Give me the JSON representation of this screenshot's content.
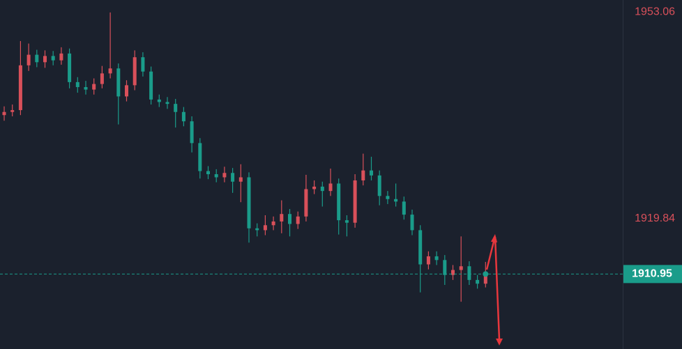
{
  "chart_data": {
    "type": "candlestick",
    "up_color": "#d9505a",
    "down_color": "#1a9c8a",
    "ylim": [
      1898.9,
      1955.0
    ],
    "yticks": [
      1953.06,
      1919.84
    ],
    "last_price": 1910.95,
    "open": [
      1936.5,
      1937.0,
      1937.3,
      1944.5,
      1946.2,
      1945.0,
      1946.0,
      1945.3,
      1946.4,
      1941.8,
      1941.0,
      1940.6,
      1941.5,
      1943.2,
      1944.0,
      1939.5,
      1941.3,
      1945.8,
      1943.5,
      1939.0,
      1938.6,
      1938.3,
      1937.0,
      1935.5,
      1932.0,
      1927.5,
      1927.0,
      1926.5,
      1927.2,
      1925.8,
      1926.5,
      1918.3,
      1918.0,
      1918.8,
      1919.4,
      1920.6,
      1919.0,
      1920.2,
      1924.6,
      1925.0,
      1924.3,
      1925.5,
      1919.6,
      1919.2,
      1926.0,
      1927.6,
      1926.8,
      1923.5,
      1923.0,
      1922.6,
      1920.5,
      1918.0,
      1912.5,
      1913.8,
      1913.2,
      1910.8,
      1911.6,
      1912.2,
      1910.0,
      1909.4
    ],
    "high": [
      1937.9,
      1938.2,
      1948.4,
      1948.0,
      1947.0,
      1946.9,
      1946.8,
      1947.4,
      1947.2,
      1942.6,
      1942.0,
      1942.4,
      1944.4,
      1953.0,
      1944.8,
      1942.1,
      1946.9,
      1946.6,
      1944.3,
      1939.8,
      1939.4,
      1939.1,
      1937.8,
      1936.3,
      1932.8,
      1928.3,
      1927.8,
      1928.2,
      1928.0,
      1928.6,
      1927.3,
      1919.1,
      1920.4,
      1920.2,
      1922.8,
      1921.4,
      1921.0,
      1926.9,
      1926.0,
      1925.8,
      1927.9,
      1926.3,
      1920.4,
      1927.0,
      1930.3,
      1929.8,
      1927.6,
      1924.3,
      1925.5,
      1923.4,
      1921.3,
      1918.8,
      1914.6,
      1914.6,
      1914.0,
      1912.4,
      1917.0,
      1913.0,
      1910.8,
      1912.9
    ],
    "low": [
      1935.6,
      1936.3,
      1936.5,
      1943.6,
      1944.2,
      1944.1,
      1944.5,
      1944.6,
      1940.8,
      1940.1,
      1939.8,
      1939.8,
      1940.8,
      1942.4,
      1935.0,
      1938.7,
      1940.5,
      1942.7,
      1938.2,
      1937.8,
      1937.5,
      1934.5,
      1934.7,
      1930.5,
      1926.3,
      1926.2,
      1925.7,
      1925.7,
      1924.0,
      1922.5,
      1916.0,
      1917.0,
      1917.2,
      1918.0,
      1917.5,
      1917.0,
      1918.2,
      1919.4,
      1923.8,
      1921.8,
      1923.5,
      1917.3,
      1917.0,
      1918.4,
      1925.2,
      1926.0,
      1922.0,
      1922.2,
      1921.8,
      1919.7,
      1917.2,
      1908.0,
      1911.7,
      1912.4,
      1909.2,
      1910.0,
      1906.5,
      1909.2,
      1908.6,
      1908.8
    ],
    "close": [
      1937.0,
      1937.3,
      1944.5,
      1946.2,
      1945.0,
      1946.0,
      1945.3,
      1946.4,
      1941.8,
      1941.0,
      1940.6,
      1941.5,
      1943.2,
      1944.0,
      1939.5,
      1941.3,
      1945.8,
      1943.5,
      1939.0,
      1938.6,
      1938.3,
      1937.0,
      1935.5,
      1932.0,
      1927.5,
      1927.0,
      1926.5,
      1927.2,
      1925.8,
      1926.5,
      1918.3,
      1918.0,
      1918.8,
      1919.4,
      1920.6,
      1919.0,
      1920.2,
      1924.6,
      1925.0,
      1924.3,
      1925.5,
      1919.6,
      1919.2,
      1926.0,
      1927.6,
      1926.8,
      1923.5,
      1923.0,
      1922.6,
      1920.5,
      1918.0,
      1912.5,
      1913.8,
      1913.2,
      1910.8,
      1911.6,
      1912.2,
      1910.0,
      1909.4,
      1910.95
    ]
  }
}
